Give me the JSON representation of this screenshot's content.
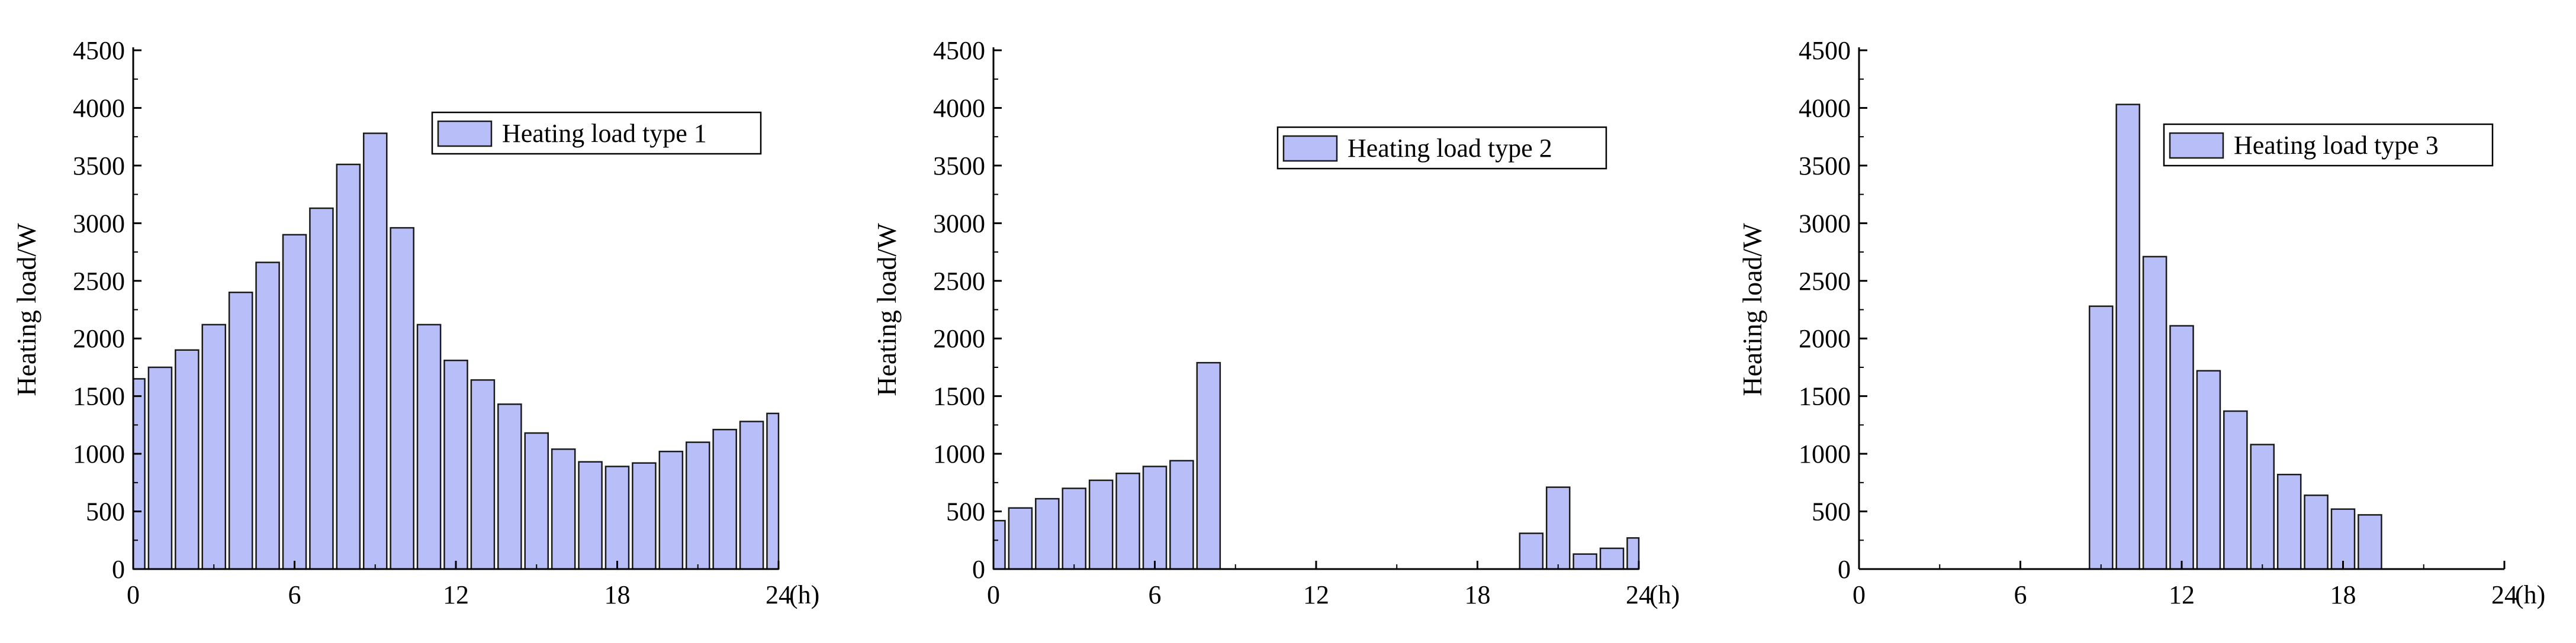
{
  "colors": {
    "bar_fill": "#b8bff8",
    "bar_stroke": "#1a1a1a",
    "axis": "#000000"
  },
  "chart_data": [
    {
      "type": "bar",
      "title": "",
      "xlabel": "",
      "ylabel": "Heating load/W",
      "x_unit_label": "(h)",
      "xlim": [
        0,
        24
      ],
      "ylim": [
        0,
        4500
      ],
      "xticks": [
        0,
        6,
        12,
        18,
        24
      ],
      "yticks": [
        0,
        500,
        1000,
        1500,
        2000,
        2500,
        3000,
        3500,
        4000,
        4500
      ],
      "grid": false,
      "legend_position": "top-right",
      "series": [
        {
          "name": "Heating load type 1",
          "x": [
            0,
            1,
            2,
            3,
            4,
            5,
            6,
            7,
            8,
            9,
            10,
            11,
            12,
            13,
            14,
            15,
            16,
            17,
            18,
            19,
            20,
            21,
            22,
            23,
            24
          ],
          "values": [
            1650,
            1750,
            1900,
            2120,
            2400,
            2660,
            2900,
            3130,
            3510,
            3780,
            2960,
            2120,
            1810,
            1640,
            1430,
            1180,
            1040,
            930,
            890,
            920,
            1020,
            1100,
            1210,
            1280,
            1350
          ]
        }
      ]
    },
    {
      "type": "bar",
      "title": "",
      "xlabel": "",
      "ylabel": "Heating load/W",
      "x_unit_label": "(h)",
      "xlim": [
        0,
        24
      ],
      "ylim": [
        0,
        4500
      ],
      "xticks": [
        0,
        6,
        12,
        18,
        24
      ],
      "yticks": [
        0,
        500,
        1000,
        1500,
        2000,
        2500,
        3000,
        3500,
        4000,
        4500
      ],
      "grid": false,
      "legend_position": "top-right",
      "series": [
        {
          "name": "Heating load type 2",
          "x": [
            0,
            1,
            2,
            3,
            4,
            5,
            6,
            7,
            8,
            9,
            10,
            11,
            12,
            13,
            14,
            15,
            16,
            17,
            18,
            19,
            20,
            21,
            22,
            23,
            24
          ],
          "values": [
            420,
            530,
            610,
            700,
            770,
            830,
            890,
            940,
            1790,
            0,
            0,
            0,
            0,
            0,
            0,
            0,
            0,
            0,
            0,
            0,
            310,
            710,
            130,
            180,
            270
          ]
        }
      ]
    },
    {
      "type": "bar",
      "title": "",
      "xlabel": "",
      "ylabel": "Heating load/W",
      "x_unit_label": "(h)",
      "xlim": [
        0,
        24
      ],
      "ylim": [
        0,
        4500
      ],
      "xticks": [
        0,
        6,
        12,
        18,
        24
      ],
      "yticks": [
        0,
        500,
        1000,
        1500,
        2000,
        2500,
        3000,
        3500,
        4000,
        4500
      ],
      "grid": false,
      "legend_position": "top-right",
      "series": [
        {
          "name": "Heating load type 3",
          "x": [
            0,
            1,
            2,
            3,
            4,
            5,
            6,
            7,
            8,
            9,
            10,
            11,
            12,
            13,
            14,
            15,
            16,
            17,
            18,
            19,
            20,
            21,
            22,
            23,
            24
          ],
          "values": [
            0,
            0,
            0,
            0,
            0,
            0,
            0,
            0,
            0,
            2280,
            4030,
            2710,
            2110,
            1720,
            1370,
            1080,
            820,
            640,
            520,
            470,
            0,
            0,
            0,
            0,
            0
          ]
        }
      ]
    }
  ]
}
